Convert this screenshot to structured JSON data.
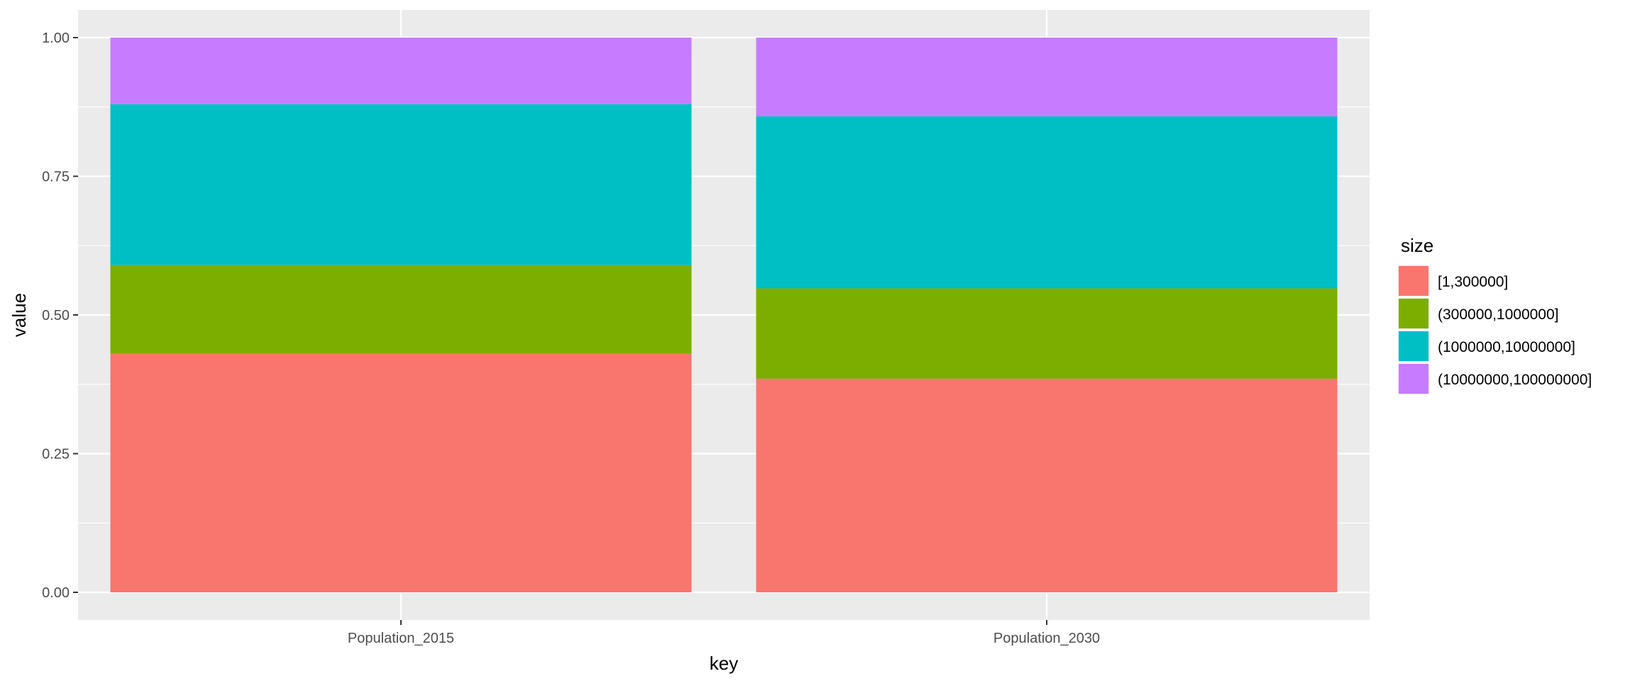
{
  "chart_data": {
    "type": "bar",
    "stacked": true,
    "xlabel": "key",
    "ylabel": "value",
    "categories": [
      "Population_2015",
      "Population_2030"
    ],
    "ylim": [
      0,
      1
    ],
    "yticks": [
      "0.00",
      "0.25",
      "0.50",
      "0.75",
      "1.00"
    ],
    "ytick_values": [
      0,
      0.25,
      0.5,
      0.75,
      1.0
    ],
    "grid": true,
    "legend": {
      "title": "size",
      "position": "right"
    },
    "series": [
      {
        "name": "[1,300000]",
        "color": "#F8766D",
        "values": [
          0.43,
          0.385
        ]
      },
      {
        "name": "(300000,1000000]",
        "color": "#7CAE00",
        "values": [
          0.16,
          0.163
        ]
      },
      {
        "name": "(1000000,10000000]",
        "color": "#00BFC4",
        "values": [
          0.29,
          0.31
        ]
      },
      {
        "name": "(10000000,100000000]",
        "color": "#C77CFF",
        "values": [
          0.12,
          0.142
        ]
      }
    ]
  }
}
